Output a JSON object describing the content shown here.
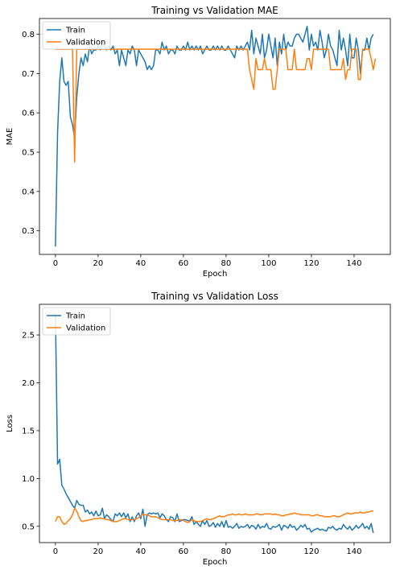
{
  "chart_data": [
    {
      "type": "line",
      "title": "Training vs Validation MAE",
      "xlabel": "Epoch",
      "ylabel": "MAE",
      "xlim": [
        -7.5,
        157
      ],
      "ylim": [
        0.24,
        0.84
      ],
      "xticks": [
        0,
        20,
        40,
        60,
        80,
        100,
        120,
        140
      ],
      "yticks": [
        0.3,
        0.4,
        0.5,
        0.6,
        0.7,
        0.8
      ],
      "ytick_labels": [
        "0.3",
        "0.4",
        "0.5",
        "0.6",
        "0.7",
        "0.8"
      ],
      "legend_position": "upper-left",
      "grid": false,
      "series": [
        {
          "name": "Train",
          "color": "#1f77b4",
          "values": [
            0.26,
            0.55,
            0.68,
            0.74,
            0.68,
            0.67,
            0.68,
            0.59,
            0.57,
            0.535,
            0.64,
            0.7,
            0.74,
            0.72,
            0.75,
            0.73,
            0.77,
            0.75,
            0.76,
            0.76,
            0.77,
            0.76,
            0.78,
            0.77,
            0.76,
            0.77,
            0.76,
            0.77,
            0.75,
            0.76,
            0.72,
            0.76,
            0.74,
            0.72,
            0.76,
            0.75,
            0.77,
            0.76,
            0.72,
            0.76,
            0.75,
            0.74,
            0.73,
            0.71,
            0.72,
            0.71,
            0.72,
            0.76,
            0.76,
            0.75,
            0.78,
            0.76,
            0.77,
            0.75,
            0.76,
            0.76,
            0.75,
            0.77,
            0.76,
            0.76,
            0.77,
            0.76,
            0.78,
            0.76,
            0.77,
            0.76,
            0.77,
            0.76,
            0.77,
            0.75,
            0.76,
            0.77,
            0.76,
            0.76,
            0.77,
            0.76,
            0.77,
            0.76,
            0.77,
            0.76,
            0.76,
            0.77,
            0.76,
            0.75,
            0.74,
            0.77,
            0.76,
            0.77,
            0.76,
            0.77,
            0.78,
            0.76,
            0.81,
            0.75,
            0.79,
            0.77,
            0.75,
            0.8,
            0.74,
            0.76,
            0.8,
            0.77,
            0.74,
            0.79,
            0.72,
            0.78,
            0.75,
            0.8,
            0.76,
            0.78,
            0.77,
            0.77,
            0.79,
            0.8,
            0.8,
            0.79,
            0.78,
            0.8,
            0.82,
            0.76,
            0.8,
            0.77,
            0.78,
            0.76,
            0.81,
            0.78,
            0.74,
            0.76,
            0.8,
            0.77,
            0.76,
            0.74,
            0.72,
            0.81,
            0.76,
            0.79,
            0.76,
            0.72,
            0.8,
            0.74,
            0.74,
            0.79,
            0.76,
            0.7,
            0.76,
            0.76,
            0.79,
            0.76,
            0.79,
            0.8
          ]
        },
        {
          "name": "Validation",
          "color": "#ff7f0e",
          "values": [
            0.762,
            0.762,
            0.762,
            0.762,
            0.762,
            0.762,
            0.762,
            0.762,
            0.762,
            0.475,
            0.762,
            0.762,
            0.762,
            0.762,
            0.762,
            0.762,
            0.762,
            0.762,
            0.762,
            0.762,
            0.762,
            0.762,
            0.762,
            0.762,
            0.762,
            0.762,
            0.762,
            0.762,
            0.762,
            0.762,
            0.762,
            0.762,
            0.762,
            0.762,
            0.762,
            0.762,
            0.762,
            0.762,
            0.762,
            0.762,
            0.762,
            0.762,
            0.762,
            0.762,
            0.762,
            0.762,
            0.762,
            0.762,
            0.762,
            0.762,
            0.762,
            0.762,
            0.762,
            0.762,
            0.762,
            0.762,
            0.762,
            0.762,
            0.762,
            0.762,
            0.762,
            0.762,
            0.762,
            0.762,
            0.762,
            0.762,
            0.762,
            0.762,
            0.762,
            0.762,
            0.762,
            0.762,
            0.762,
            0.762,
            0.762,
            0.762,
            0.762,
            0.762,
            0.762,
            0.762,
            0.762,
            0.762,
            0.762,
            0.762,
            0.762,
            0.762,
            0.762,
            0.762,
            0.762,
            0.762,
            0.762,
            0.71,
            0.685,
            0.66,
            0.738,
            0.71,
            0.71,
            0.71,
            0.738,
            0.71,
            0.71,
            0.71,
            0.66,
            0.66,
            0.71,
            0.762,
            0.762,
            0.762,
            0.762,
            0.71,
            0.71,
            0.71,
            0.762,
            0.71,
            0.71,
            0.71,
            0.71,
            0.71,
            0.738,
            0.738,
            0.71,
            0.762,
            0.762,
            0.762,
            0.762,
            0.762,
            0.762,
            0.762,
            0.762,
            0.71,
            0.71,
            0.71,
            0.71,
            0.71,
            0.71,
            0.738,
            0.685,
            0.71,
            0.71,
            0.762,
            0.762,
            0.762,
            0.685,
            0.685,
            0.762,
            0.762,
            0.762,
            0.762,
            0.738,
            0.71,
            0.738
          ]
        }
      ]
    },
    {
      "type": "line",
      "title": "Training vs Validation Loss",
      "xlabel": "Epoch",
      "ylabel": "Loss",
      "xlim": [
        -7.5,
        157
      ],
      "ylim": [
        0.33,
        2.82
      ],
      "xticks": [
        0,
        20,
        40,
        60,
        80,
        100,
        120,
        140
      ],
      "yticks": [
        0.5,
        1.0,
        1.5,
        2.0,
        2.5
      ],
      "ytick_labels": [
        "0.5",
        "1.0",
        "1.5",
        "2.0",
        "2.5"
      ],
      "legend_position": "upper-left",
      "grid": false,
      "series": [
        {
          "name": "Train",
          "color": "#1f77b4",
          "values": [
            2.72,
            1.15,
            1.2,
            0.93,
            0.89,
            0.84,
            0.8,
            0.76,
            0.72,
            0.69,
            0.77,
            0.73,
            0.72,
            0.72,
            0.65,
            0.67,
            0.63,
            0.65,
            0.61,
            0.66,
            0.61,
            0.62,
            0.69,
            0.58,
            0.62,
            0.6,
            0.57,
            0.55,
            0.63,
            0.61,
            0.64,
            0.6,
            0.64,
            0.59,
            0.63,
            0.55,
            0.6,
            0.55,
            0.61,
            0.64,
            0.58,
            0.68,
            0.5,
            0.62,
            0.64,
            0.63,
            0.64,
            0.63,
            0.64,
            0.59,
            0.63,
            0.61,
            0.57,
            0.55,
            0.6,
            0.59,
            0.55,
            0.63,
            0.55,
            0.56,
            0.57,
            0.57,
            0.56,
            0.56,
            0.6,
            0.52,
            0.55,
            0.52,
            0.5,
            0.56,
            0.52,
            0.56,
            0.5,
            0.51,
            0.54,
            0.49,
            0.53,
            0.5,
            0.55,
            0.49,
            0.56,
            0.49,
            0.5,
            0.48,
            0.5,
            0.53,
            0.48,
            0.5,
            0.49,
            0.5,
            0.52,
            0.48,
            0.51,
            0.5,
            0.47,
            0.52,
            0.48,
            0.5,
            0.49,
            0.53,
            0.48,
            0.47,
            0.5,
            0.49,
            0.5,
            0.52,
            0.46,
            0.51,
            0.5,
            0.48,
            0.52,
            0.49,
            0.5,
            0.46,
            0.48,
            0.51,
            0.49,
            0.52,
            0.47,
            0.48,
            0.44,
            0.46,
            0.47,
            0.48,
            0.46,
            0.47,
            0.46,
            0.45,
            0.49,
            0.48,
            0.5,
            0.47,
            0.46,
            0.48,
            0.47,
            0.52,
            0.49,
            0.47,
            0.5,
            0.46,
            0.48,
            0.51,
            0.48,
            0.5,
            0.53,
            0.48,
            0.5,
            0.47,
            0.53,
            0.43
          ]
        },
        {
          "name": "Validation",
          "color": "#ff7f0e",
          "values": [
            0.55,
            0.6,
            0.6,
            0.55,
            0.52,
            0.53,
            0.56,
            0.58,
            0.62,
            0.69,
            0.66,
            0.6,
            0.56,
            0.55,
            0.56,
            0.56,
            0.57,
            0.57,
            0.58,
            0.58,
            0.58,
            0.59,
            0.58,
            0.58,
            0.57,
            0.57,
            0.56,
            0.55,
            0.55,
            0.55,
            0.56,
            0.57,
            0.58,
            0.58,
            0.57,
            0.57,
            0.57,
            0.57,
            0.58,
            0.59,
            0.61,
            0.63,
            0.62,
            0.62,
            0.61,
            0.6,
            0.6,
            0.6,
            0.59,
            0.58,
            0.57,
            0.57,
            0.57,
            0.57,
            0.57,
            0.56,
            0.56,
            0.56,
            0.57,
            0.57,
            0.56,
            0.55,
            0.54,
            0.55,
            0.57,
            0.56,
            0.55,
            0.55,
            0.55,
            0.56,
            0.57,
            0.58,
            0.57,
            0.57,
            0.58,
            0.59,
            0.6,
            0.61,
            0.6,
            0.6,
            0.61,
            0.62,
            0.62,
            0.63,
            0.62,
            0.62,
            0.63,
            0.62,
            0.62,
            0.63,
            0.62,
            0.62,
            0.62,
            0.62,
            0.63,
            0.63,
            0.62,
            0.62,
            0.63,
            0.63,
            0.63,
            0.63,
            0.62,
            0.63,
            0.62,
            0.62,
            0.61,
            0.61,
            0.62,
            0.62,
            0.63,
            0.63,
            0.64,
            0.63,
            0.63,
            0.62,
            0.62,
            0.62,
            0.62,
            0.62,
            0.61,
            0.61,
            0.62,
            0.62,
            0.61,
            0.61,
            0.6,
            0.6,
            0.6,
            0.6,
            0.61,
            0.61,
            0.6,
            0.6,
            0.61,
            0.62,
            0.63,
            0.64,
            0.63,
            0.63,
            0.64,
            0.64,
            0.64,
            0.65,
            0.64,
            0.64,
            0.65,
            0.65,
            0.66,
            0.66
          ]
        }
      ]
    }
  ]
}
